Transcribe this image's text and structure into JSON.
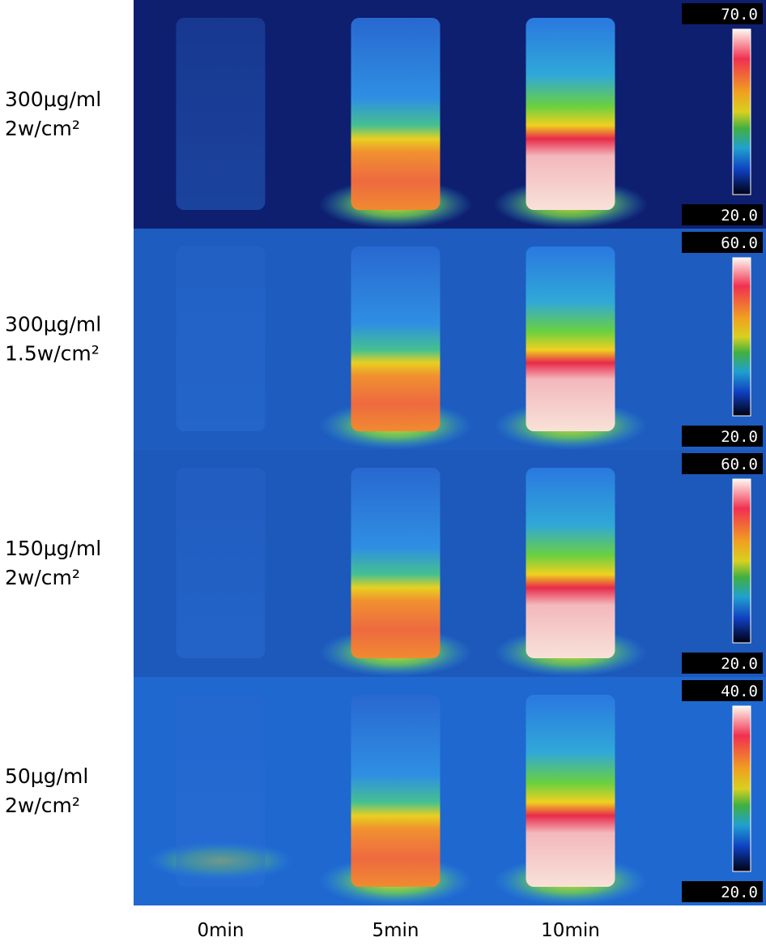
{
  "rows": [
    {
      "label_lines": [
        "300μg/ml",
        "2w/cm²"
      ],
      "scale_max": "70.0",
      "scale_min": "20.0"
    },
    {
      "label_lines": [
        "300μg/ml",
        "1.5w/cm²"
      ],
      "scale_max": "60.0",
      "scale_min": "20.0"
    },
    {
      "label_lines": [
        "150μg/ml",
        "2w/cm²"
      ],
      "scale_max": "60.0",
      "scale_min": "20.0"
    },
    {
      "label_lines": [
        "50μg/ml",
        "2w/cm²"
      ],
      "scale_max": "40.0",
      "scale_min": "20.0"
    }
  ],
  "columns": [
    "0min",
    "5min",
    "10min"
  ]
}
